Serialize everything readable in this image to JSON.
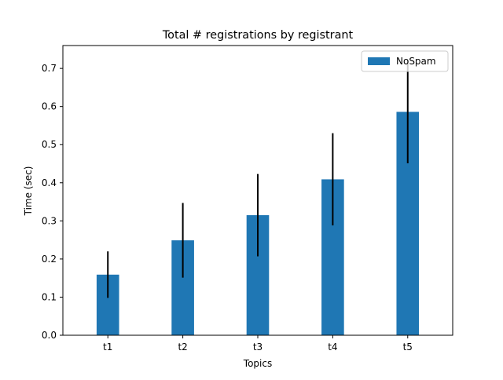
{
  "chart_data": {
    "type": "bar",
    "title": "Total # registrations by registrant",
    "xlabel": "Topics",
    "ylabel": "Time (sec)",
    "categories": [
      "t1",
      "t2",
      "t3",
      "t4",
      "t5"
    ],
    "series": [
      {
        "name": "NoSpam",
        "values": [
          0.159,
          0.249,
          0.315,
          0.409,
          0.586
        ],
        "errors": [
          0.061,
          0.098,
          0.108,
          0.121,
          0.135
        ],
        "color": "#1f77b4"
      }
    ],
    "ylim": [
      0,
      0.76
    ],
    "yticks": [
      0.0,
      0.1,
      0.2,
      0.3,
      0.4,
      0.5,
      0.6,
      0.7
    ],
    "ytick_labels": [
      "0.0",
      "0.1",
      "0.2",
      "0.3",
      "0.4",
      "0.5",
      "0.6",
      "0.7"
    ],
    "error_bar_color": "#000000",
    "grid": false,
    "legend_position": "upper-right"
  }
}
